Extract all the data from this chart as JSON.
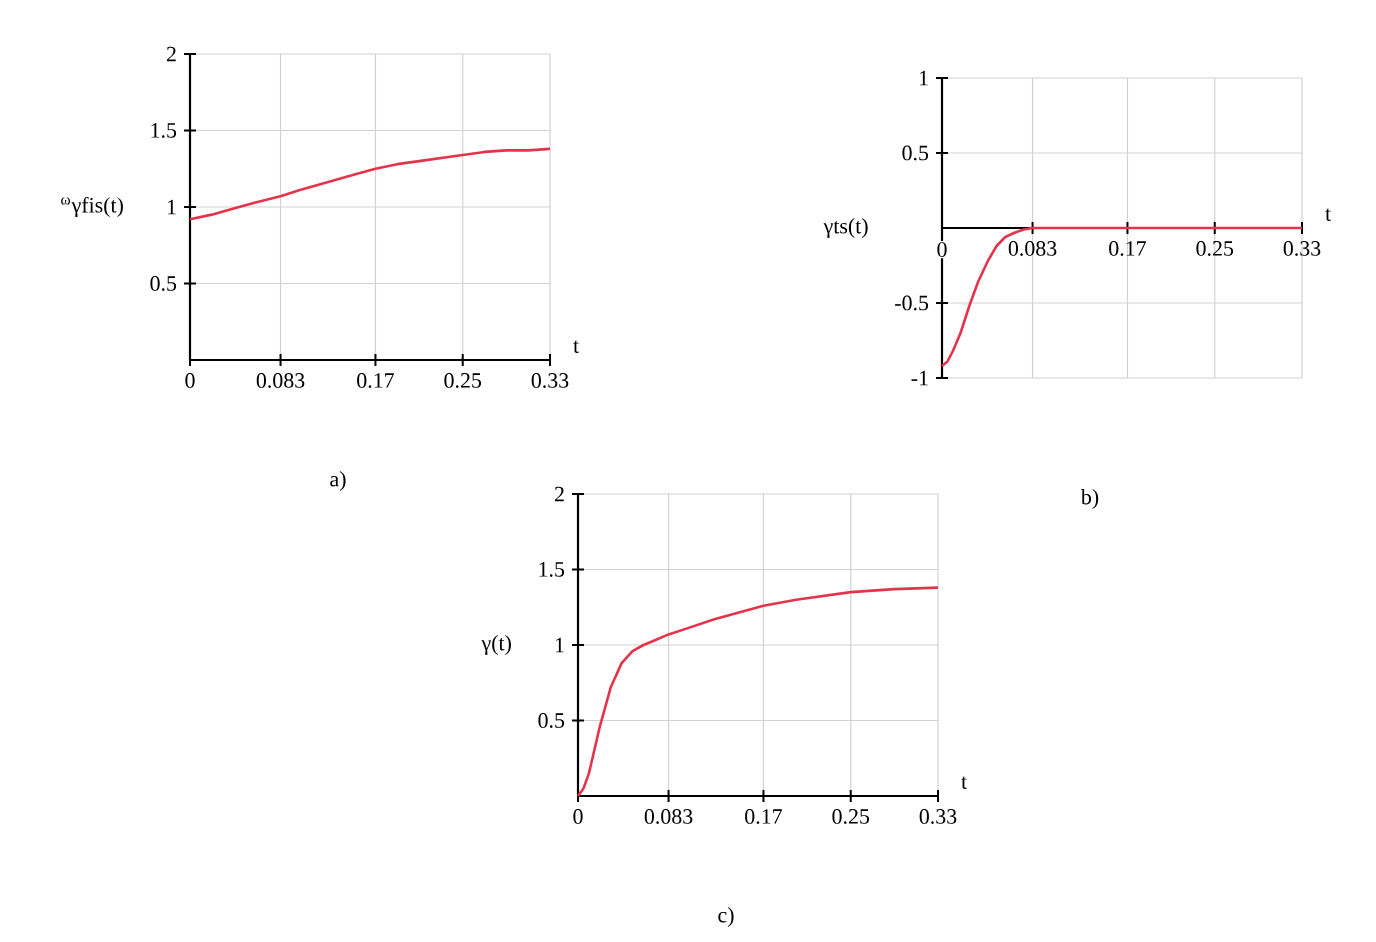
{
  "chart_data": [
    {
      "type": "line",
      "xlabel": "t",
      "ylabel": "$^{ω}$γfis(t)",
      "annotations": [
        "a)"
      ],
      "color": "#e4344c",
      "grid": true,
      "xlim": [
        0,
        0.33
      ],
      "ylim": [
        0,
        2
      ],
      "xticks": [
        0,
        0.083,
        0.17,
        0.25,
        0.33
      ],
      "yticks": [
        0.5,
        1,
        1.5,
        2
      ],
      "x": [
        0,
        0.02,
        0.04,
        0.06,
        0.083,
        0.1,
        0.125,
        0.15,
        0.17,
        0.19,
        0.21,
        0.23,
        0.25,
        0.27,
        0.29,
        0.31,
        0.33
      ],
      "values": [
        0.92,
        0.95,
        0.99,
        1.03,
        1.07,
        1.11,
        1.16,
        1.21,
        1.25,
        1.28,
        1.3,
        1.32,
        1.34,
        1.36,
        1.37,
        1.37,
        1.38
      ]
    },
    {
      "type": "line",
      "xlabel": "t",
      "ylabel": "γts(t)",
      "annotations": [
        "b)"
      ],
      "color": "#e4344c",
      "grid": true,
      "xlim": [
        0,
        0.33
      ],
      "ylim": [
        -1,
        1
      ],
      "xticks": [
        0,
        0.083,
        0.17,
        0.25,
        0.33
      ],
      "yticks": [
        -1,
        -0.5,
        0.5,
        1
      ],
      "x": [
        0,
        0.005,
        0.01,
        0.017,
        0.025,
        0.033,
        0.042,
        0.05,
        0.058,
        0.067,
        0.075,
        0.083,
        0.17,
        0.25,
        0.33
      ],
      "values": [
        -0.92,
        -0.89,
        -0.82,
        -0.7,
        -0.52,
        -0.36,
        -0.22,
        -0.12,
        -0.06,
        -0.03,
        -0.01,
        0,
        0,
        0,
        0
      ]
    },
    {
      "type": "line",
      "xlabel": "t",
      "ylabel": "γ(t)",
      "annotations": [
        "c)"
      ],
      "color": "#e4344c",
      "grid": true,
      "xlim": [
        0,
        0.33
      ],
      "ylim": [
        0,
        2
      ],
      "xticks": [
        0,
        0.083,
        0.17,
        0.25,
        0.33
      ],
      "yticks": [
        0.5,
        1,
        1.5,
        2
      ],
      "x": [
        0,
        0.005,
        0.01,
        0.02,
        0.03,
        0.04,
        0.05,
        0.06,
        0.07,
        0.083,
        0.1,
        0.125,
        0.15,
        0.17,
        0.2,
        0.25,
        0.29,
        0.33
      ],
      "values": [
        0,
        0.05,
        0.15,
        0.46,
        0.72,
        0.88,
        0.96,
        1.0,
        1.03,
        1.07,
        1.11,
        1.17,
        1.22,
        1.26,
        1.3,
        1.35,
        1.37,
        1.38
      ]
    }
  ]
}
